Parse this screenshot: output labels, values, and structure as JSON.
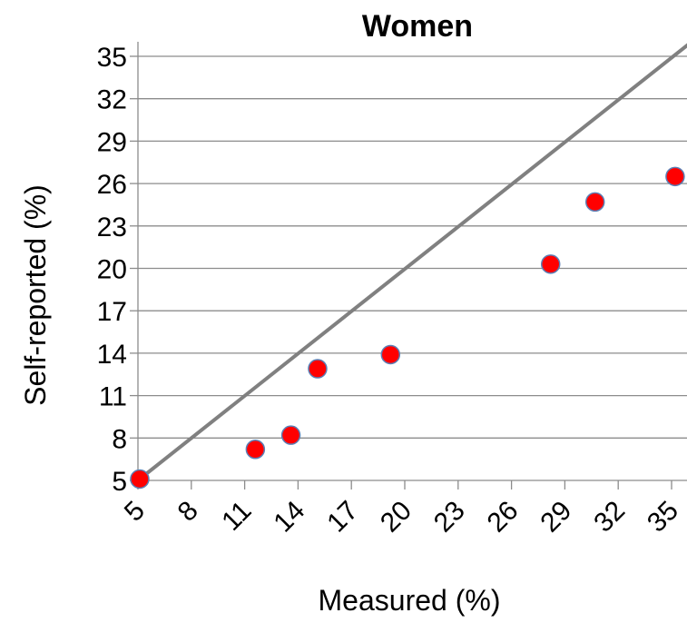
{
  "chart_data": {
    "type": "scatter",
    "title": "Women",
    "xlabel": "Measured (%)",
    "ylabel": "Self-reported (%)",
    "xlim": [
      5,
      35
    ],
    "ylim": [
      5,
      35
    ],
    "xticks": [
      5,
      8,
      11,
      14,
      17,
      20,
      23,
      26,
      29,
      32,
      35
    ],
    "yticks": [
      5,
      8,
      11,
      14,
      17,
      20,
      23,
      26,
      29,
      32,
      35
    ],
    "grid": "horizontal",
    "x_tick_rotation": "diagonal",
    "series": [
      {
        "type": "scatter",
        "points": [
          {
            "x": 5.1,
            "y": 5.1
          },
          {
            "x": 11.6,
            "y": 7.2
          },
          {
            "x": 13.6,
            "y": 8.2
          },
          {
            "x": 15.1,
            "y": 12.9
          },
          {
            "x": 19.2,
            "y": 13.9
          },
          {
            "x": 28.2,
            "y": 20.3
          },
          {
            "x": 30.7,
            "y": 24.7
          },
          {
            "x": 35.2,
            "y": 26.5
          }
        ]
      },
      {
        "type": "line",
        "points": [
          {
            "x": 5.0,
            "y": 5.0
          },
          {
            "x": 36.0,
            "y": 35.9
          }
        ]
      }
    ],
    "colors": {
      "marker_fill": "#ff0000",
      "marker_stroke": "#5b7fb5",
      "line": "#808080",
      "grid": "#8c8c8c",
      "axis": "#8c8c8c"
    }
  }
}
